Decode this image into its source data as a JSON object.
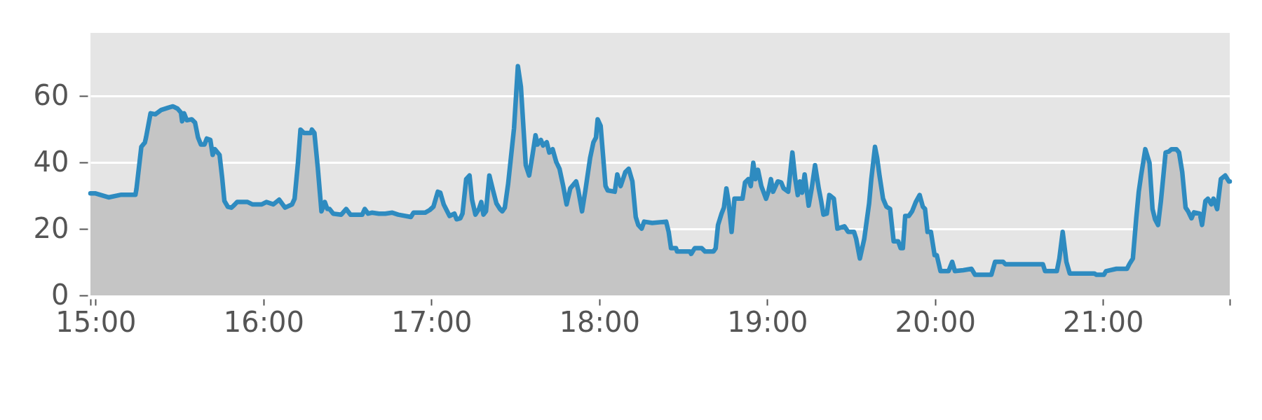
{
  "chart_data": {
    "type": "area",
    "grid": "y",
    "xlim": [
      14.969,
      21.755
    ],
    "ylim": [
      0,
      79
    ],
    "xticks": [
      {
        "value": 14.969,
        "label": null
      },
      {
        "value": 15,
        "label": "15:00"
      },
      {
        "value": 16,
        "label": "16:00"
      },
      {
        "value": 17,
        "label": "17:00"
      },
      {
        "value": 18,
        "label": "18:00"
      },
      {
        "value": 19,
        "label": "19:00"
      },
      {
        "value": 20,
        "label": "20:00"
      },
      {
        "value": 21,
        "label": "21:00"
      },
      {
        "value": 21.755,
        "label": null
      }
    ],
    "yticks": [
      0,
      20,
      40,
      60
    ],
    "x": [
      14.969,
      15.0,
      15.077,
      15.153,
      15.237,
      15.243,
      15.272,
      15.293,
      15.3,
      15.327,
      15.355,
      15.39,
      15.432,
      15.46,
      15.488,
      15.508,
      15.515,
      15.527,
      15.543,
      15.572,
      15.592,
      15.61,
      15.627,
      15.648,
      15.662,
      15.683,
      15.697,
      15.71,
      15.738,
      15.753,
      15.767,
      15.787,
      15.808,
      15.822,
      15.843,
      15.905,
      15.933,
      15.99,
      16.017,
      16.058,
      16.093,
      16.128,
      16.17,
      16.185,
      16.205,
      16.22,
      16.24,
      16.282,
      16.288,
      16.303,
      16.323,
      16.345,
      16.365,
      16.38,
      16.393,
      16.415,
      16.463,
      16.492,
      16.518,
      16.588,
      16.603,
      16.623,
      16.645,
      16.687,
      16.725,
      16.767,
      16.802,
      16.878,
      16.893,
      16.962,
      16.99,
      17.012,
      17.038,
      17.053,
      17.073,
      17.108,
      17.137,
      17.15,
      17.172,
      17.185,
      17.207,
      17.227,
      17.242,
      17.262,
      17.283,
      17.297,
      17.31,
      17.325,
      17.345,
      17.367,
      17.387,
      17.408,
      17.422,
      17.437,
      17.457,
      17.492,
      17.515,
      17.533,
      17.562,
      17.582,
      17.603,
      17.62,
      17.632,
      17.652,
      17.665,
      17.687,
      17.702,
      17.722,
      17.743,
      17.763,
      17.785,
      17.805,
      17.827,
      17.862,
      17.875,
      17.897,
      17.917,
      17.945,
      17.965,
      17.98,
      17.99,
      18.008,
      18.037,
      18.05,
      18.092,
      18.107,
      18.127,
      18.155,
      18.175,
      18.197,
      18.217,
      18.232,
      18.252,
      18.267,
      18.315,
      18.398,
      18.413,
      18.427,
      18.457,
      18.463,
      18.54,
      18.547,
      18.568,
      18.61,
      18.63,
      18.68,
      18.693,
      18.707,
      18.728,
      18.742,
      18.757,
      18.77,
      18.788,
      18.805,
      18.853,
      18.868,
      18.888,
      18.902,
      18.917,
      18.93,
      18.945,
      18.965,
      18.993,
      19.007,
      19.022,
      19.035,
      19.063,
      19.083,
      19.098,
      19.125,
      19.15,
      19.167,
      19.182,
      19.195,
      19.208,
      19.223,
      19.247,
      19.265,
      19.285,
      19.307,
      19.32,
      19.335,
      19.355,
      19.37,
      19.397,
      19.418,
      19.46,
      19.482,
      19.517,
      19.53,
      19.552,
      19.578,
      19.607,
      19.62,
      19.642,
      19.655,
      19.668,
      19.69,
      19.71,
      19.732,
      19.753,
      19.78,
      19.795,
      19.808,
      19.822,
      19.843,
      19.863,
      19.885,
      19.908,
      19.927,
      19.94,
      19.955,
      19.975,
      19.997,
      20.01,
      20.032,
      20.08,
      20.102,
      20.118,
      20.168,
      20.217,
      20.238,
      20.335,
      20.357,
      20.405,
      20.418,
      20.642,
      20.655,
      20.725,
      20.74,
      20.76,
      20.782,
      20.802,
      20.948,
      20.962,
      21.005,
      21.018,
      21.08,
      21.143,
      21.157,
      21.178,
      21.198,
      21.213,
      21.227,
      21.252,
      21.277,
      21.295,
      21.31,
      21.328,
      21.345,
      21.373,
      21.393,
      21.408,
      21.437,
      21.453,
      21.472,
      21.492,
      21.507,
      21.527,
      21.542,
      21.577,
      21.59,
      21.61,
      21.625,
      21.645,
      21.658,
      21.68,
      21.702,
      21.728,
      21.75,
      21.755
    ],
    "series": [
      {
        "color": "#2e8bc0",
        "values": [
          30.7,
          30.7,
          29.5,
          30.3,
          30.3,
          32.0,
          44.7,
          46.0,
          47.5,
          54.8,
          54.5,
          55.8,
          56.5,
          56.9,
          56.2,
          55.0,
          52.4,
          54.8,
          52.7,
          53.0,
          52.0,
          47.5,
          45.4,
          45.4,
          47.2,
          46.8,
          42.3,
          44.0,
          42.3,
          35.7,
          28.4,
          26.7,
          26.4,
          27.0,
          28.1,
          28.1,
          27.4,
          27.4,
          28.1,
          27.4,
          28.8,
          26.4,
          27.4,
          29.1,
          39.9,
          49.9,
          48.9,
          48.9,
          49.9,
          48.9,
          38.5,
          25.3,
          28.1,
          26.0,
          26.0,
          24.6,
          24.3,
          26.0,
          24.3,
          24.3,
          26.0,
          24.6,
          24.9,
          24.6,
          24.6,
          24.9,
          24.3,
          23.6,
          24.9,
          24.9,
          25.7,
          26.7,
          31.2,
          30.9,
          27.4,
          23.9,
          24.6,
          22.9,
          23.2,
          24.6,
          35.0,
          36.1,
          28.8,
          24.3,
          26.0,
          28.1,
          24.3,
          25.3,
          36.1,
          31.6,
          27.7,
          26.0,
          25.3,
          26.4,
          33.6,
          50.3,
          69.0,
          62.8,
          39.2,
          36.1,
          42.6,
          48.2,
          45.4,
          46.8,
          45.1,
          46.1,
          43.0,
          44.0,
          40.2,
          38.1,
          32.9,
          27.4,
          32.2,
          34.3,
          31.6,
          25.3,
          31.6,
          41.3,
          46.1,
          47.5,
          53.0,
          51.0,
          32.9,
          31.6,
          31.2,
          36.4,
          32.9,
          37.1,
          38.1,
          34.3,
          23.6,
          21.2,
          20.1,
          22.2,
          21.8,
          22.2,
          19.1,
          14.2,
          14.2,
          13.2,
          13.2,
          12.5,
          14.2,
          14.2,
          13.2,
          13.2,
          14.2,
          21.2,
          24.6,
          26.4,
          32.2,
          28.1,
          19.1,
          29.1,
          29.1,
          34.0,
          35.0,
          32.9,
          39.9,
          35.0,
          37.8,
          32.9,
          29.1,
          31.2,
          35.0,
          31.2,
          34.3,
          34.0,
          32.2,
          31.2,
          43.0,
          35.0,
          30.2,
          34.3,
          30.9,
          36.4,
          27.0,
          32.2,
          39.2,
          32.2,
          28.8,
          24.3,
          24.6,
          30.2,
          29.1,
          20.1,
          20.8,
          19.1,
          19.1,
          17.0,
          11.1,
          17.0,
          27.7,
          35.0,
          44.7,
          41.3,
          36.4,
          29.1,
          26.7,
          26.0,
          16.3,
          16.3,
          14.2,
          14.2,
          23.9,
          23.9,
          25.3,
          28.1,
          30.2,
          26.7,
          26.0,
          19.1,
          19.1,
          12.1,
          12.1,
          7.3,
          7.3,
          10.1,
          7.3,
          7.6,
          8.0,
          6.2,
          6.2,
          10.1,
          10.1,
          9.4,
          9.4,
          7.3,
          7.3,
          11.1,
          19.1,
          10.1,
          6.6,
          6.6,
          6.2,
          6.2,
          7.3,
          8.0,
          8.0,
          9.4,
          11.1,
          23.2,
          31.2,
          36.1,
          44.0,
          39.9,
          26.0,
          22.9,
          21.2,
          28.4,
          43.0,
          43.3,
          44.0,
          44.0,
          43.0,
          37.1,
          26.4,
          25.3,
          23.2,
          25.0,
          24.6,
          21.2,
          28.4,
          29.1,
          27.4,
          29.1,
          26.0,
          35.0,
          36.1,
          34.3,
          34.3
        ]
      }
    ]
  }
}
